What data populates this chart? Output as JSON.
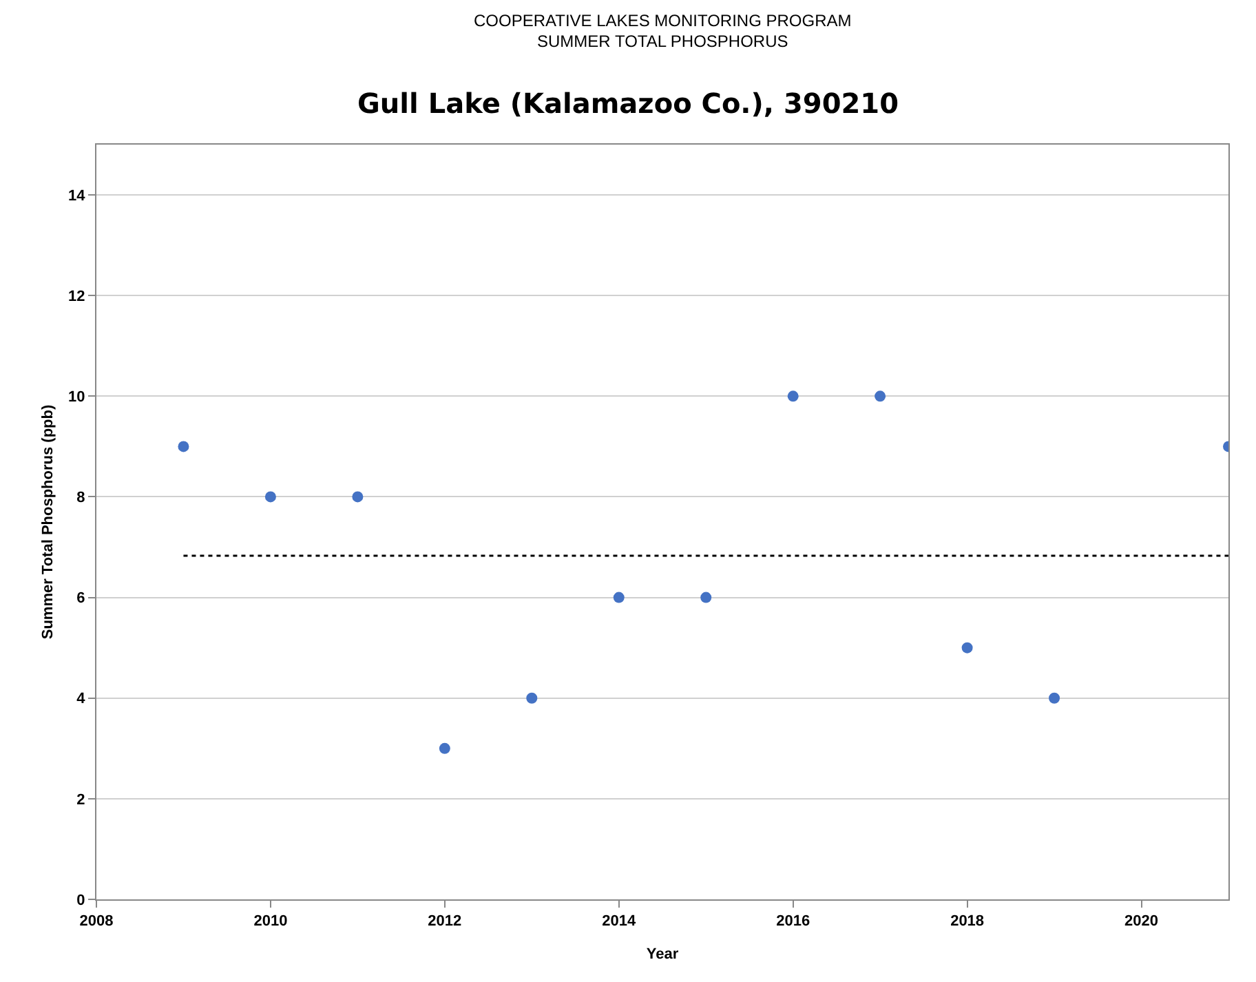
{
  "chart_data": {
    "type": "scatter",
    "title": "Gull Lake (Kalamazoo Co.), 390210",
    "annotations": [
      "COOPERATIVE LAKES MONITORING PROGRAM",
      "SUMMER TOTAL PHOSPHORUS"
    ],
    "xlabel": "Year",
    "ylabel": "Summer Total Phosphorus (ppb)",
    "series": [
      {
        "color": "#4472c4",
        "x": [
          2009,
          2010,
          2011,
          2012,
          2013,
          2014,
          2015,
          2016,
          2017,
          2018,
          2019,
          2021
        ],
        "values": [
          9,
          8,
          8,
          3,
          4,
          6,
          6,
          10,
          10,
          5,
          4,
          9
        ]
      },
      {
        "type": "line",
        "color": "#000000",
        "line_style": "dotted",
        "marker": "none",
        "x": [
          2009,
          2021
        ],
        "values": [
          6.83,
          6.83
        ]
      }
    ],
    "marker": "circle",
    "xlim": [
      2008,
      2021
    ],
    "xticks": [
      2008,
      2010,
      2012,
      2014,
      2016,
      2018,
      2020
    ],
    "ylim": [
      0,
      15
    ],
    "yticks": [
      0,
      2,
      4,
      6,
      8,
      10,
      12,
      14
    ],
    "grid": "y"
  }
}
